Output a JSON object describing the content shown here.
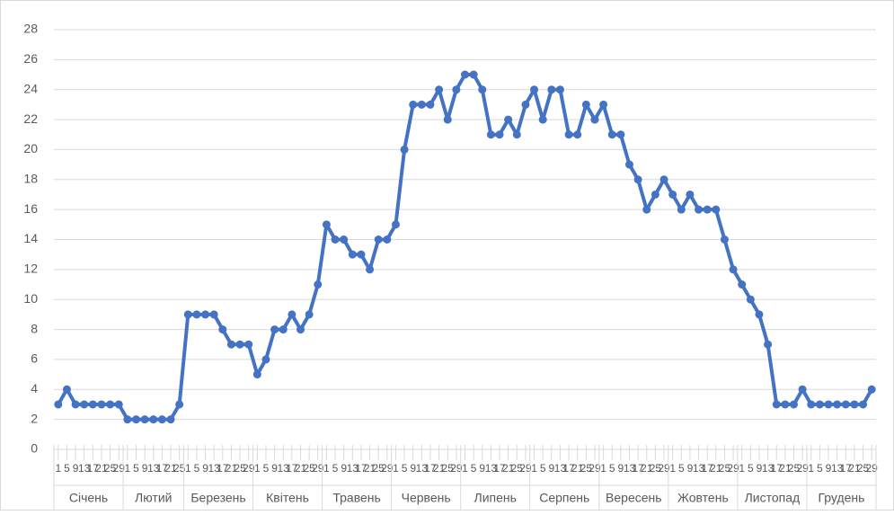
{
  "chart_data": {
    "type": "line",
    "categories": [
      "1",
      "5",
      "9",
      "13",
      "17",
      "21",
      "25",
      "29",
      "1",
      "5",
      "9",
      "13",
      "17",
      "21",
      "25",
      "1",
      "5",
      "9",
      "13",
      "17",
      "21",
      "25",
      "29",
      "1",
      "5",
      "9",
      "13",
      "17",
      "21",
      "25",
      "29",
      "1",
      "5",
      "9",
      "13",
      "17",
      "21",
      "25",
      "29",
      "1",
      "5",
      "9",
      "13",
      "17",
      "21",
      "25",
      "29",
      "1",
      "5",
      "9",
      "13",
      "17",
      "21",
      "25",
      "29",
      "1",
      "5",
      "9",
      "13",
      "17",
      "21",
      "25",
      "29",
      "1",
      "5",
      "9",
      "13",
      "17",
      "21",
      "25",
      "29",
      "1",
      "5",
      "9",
      "13",
      "17",
      "21",
      "25",
      "29",
      "1",
      "5",
      "9",
      "13",
      "17",
      "21",
      "25",
      "29",
      "1",
      "5",
      "9",
      "13",
      "17",
      "21",
      "25",
      "29"
    ],
    "months": [
      "Січень",
      "Лютий",
      "Березень",
      "Квітень",
      "Травень",
      "Червень",
      "Липень",
      "Серпень",
      "Вересень",
      "Жовтень",
      "Листопад",
      "Грудень"
    ],
    "values": [
      3,
      4,
      3,
      3,
      3,
      3,
      3,
      3,
      2,
      2,
      2,
      2,
      2,
      2,
      3,
      9,
      9,
      9,
      9,
      8,
      7,
      7,
      7,
      5,
      6,
      8,
      8,
      9,
      8,
      9,
      11,
      15,
      14,
      14,
      13,
      13,
      12,
      14,
      14,
      15,
      20,
      23,
      23,
      23,
      24,
      22,
      24,
      25,
      25,
      24,
      21,
      21,
      22,
      21,
      23,
      24,
      22,
      24,
      24,
      21,
      21,
      23,
      22,
      23,
      21,
      21,
      19,
      18,
      16,
      17,
      18,
      17,
      16,
      17,
      16,
      16,
      16,
      14,
      12,
      11,
      10,
      9,
      7,
      3,
      3,
      3,
      4,
      3,
      3,
      3,
      3,
      3,
      3,
      3,
      4
    ],
    "color": "#4472c4",
    "ylim": [
      0,
      28
    ],
    "yticks": [
      0,
      2,
      4,
      6,
      8,
      10,
      12,
      14,
      16,
      18,
      20,
      22,
      24,
      26,
      28
    ],
    "grid": true
  }
}
